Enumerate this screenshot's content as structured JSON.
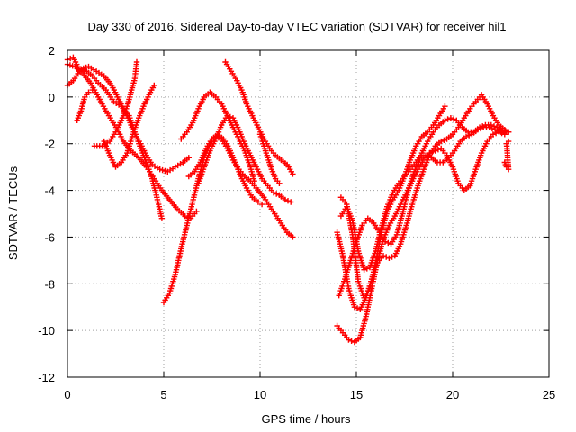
{
  "chart_data": {
    "type": "scatter",
    "title": "Day 330 of 2016, Sidereal Day-to-day VTEC variation (SDTVAR) for receiver hil1",
    "xlabel": "GPS time / hours",
    "ylabel": "SDTVAR / TECUs",
    "xlim": [
      0,
      25
    ],
    "ylim": [
      -12,
      2
    ],
    "xticks": [
      0,
      5,
      10,
      15,
      20,
      25
    ],
    "yticks": [
      -12,
      -10,
      -8,
      -6,
      -4,
      -2,
      0,
      2
    ],
    "xtick_labels": [
      "0",
      "5",
      "10",
      "15",
      "20",
      "25"
    ],
    "ytick_labels": [
      "-12",
      "-10",
      "-8",
      "-6",
      "-4",
      "-2",
      "0",
      "2"
    ],
    "grid": true,
    "marker": "+",
    "color": "#ff0000",
    "series": [
      {
        "points": [
          [
            0,
            1.6
          ],
          [
            0.3,
            1.7
          ],
          [
            0.6,
            1.2
          ],
          [
            1.0,
            1.1
          ],
          [
            1.3,
            0.9
          ],
          [
            1.6,
            0.6
          ],
          [
            2.0,
            0.3
          ],
          [
            2.4,
            -0.2
          ],
          [
            2.8,
            -0.4
          ],
          [
            3.2,
            -0.8
          ],
          [
            3.5,
            -1.5
          ],
          [
            3.8,
            -2.2
          ],
          [
            4.1,
            -2.8
          ],
          [
            4.4,
            -3.5
          ],
          [
            4.7,
            -4.5
          ],
          [
            4.9,
            -5.2
          ]
        ]
      },
      {
        "points": [
          [
            0,
            1.4
          ],
          [
            0.4,
            1.3
          ],
          [
            0.8,
            1.0
          ],
          [
            1.2,
            0.6
          ],
          [
            1.6,
            0.0
          ],
          [
            2.0,
            -0.6
          ],
          [
            2.3,
            -1.0
          ],
          [
            2.6,
            -1.4
          ],
          [
            2.9,
            -1.9
          ],
          [
            3.3,
            -2.3
          ],
          [
            3.7,
            -2.6
          ],
          [
            4.1,
            -3.0
          ],
          [
            4.5,
            -3.5
          ],
          [
            4.9,
            -4.0
          ],
          [
            5.3,
            -4.4
          ],
          [
            5.7,
            -4.8
          ],
          [
            6.1,
            -5.1
          ],
          [
            6.4,
            -5.2
          ],
          [
            6.7,
            -4.9
          ]
        ]
      },
      {
        "points": [
          [
            0,
            0.5
          ],
          [
            0.3,
            0.7
          ],
          [
            0.7,
            1.2
          ],
          [
            1.1,
            1.3
          ],
          [
            1.5,
            1.1
          ],
          [
            1.9,
            0.9
          ],
          [
            2.3,
            0.5
          ],
          [
            2.6,
            0.0
          ],
          [
            2.9,
            -0.5
          ],
          [
            3.2,
            -1.0
          ],
          [
            3.5,
            -1.6
          ],
          [
            3.8,
            -2.0
          ],
          [
            4.1,
            -2.5
          ],
          [
            4.4,
            -2.9
          ],
          [
            4.8,
            -3.1
          ],
          [
            5.2,
            -3.2
          ],
          [
            5.6,
            -3.0
          ],
          [
            6.0,
            -2.8
          ],
          [
            6.3,
            -2.6
          ]
        ]
      },
      {
        "points": [
          [
            0.5,
            -1.0
          ],
          [
            0.7,
            -0.6
          ],
          [
            0.9,
            0.0
          ],
          [
            1.1,
            0.2
          ],
          [
            1.3,
            0.3
          ]
        ]
      },
      {
        "points": [
          [
            1.4,
            -2.1
          ],
          [
            1.8,
            -2.1
          ],
          [
            2.2,
            -1.9
          ],
          [
            2.5,
            -1.5
          ],
          [
            2.8,
            -1.0
          ],
          [
            3.1,
            -0.4
          ],
          [
            3.3,
            0.2
          ],
          [
            3.5,
            0.8
          ],
          [
            3.6,
            1.5
          ]
        ]
      },
      {
        "points": [
          [
            1.9,
            -1.9
          ],
          [
            2.2,
            -2.5
          ],
          [
            2.5,
            -3.0
          ],
          [
            2.8,
            -2.8
          ],
          [
            3.1,
            -2.4
          ],
          [
            3.4,
            -1.6
          ],
          [
            3.7,
            -0.9
          ],
          [
            4.0,
            -0.3
          ],
          [
            4.3,
            0.2
          ],
          [
            4.5,
            0.5
          ]
        ]
      },
      {
        "points": [
          [
            5.0,
            -8.8
          ],
          [
            5.3,
            -8.4
          ],
          [
            5.6,
            -7.6
          ],
          [
            5.9,
            -6.5
          ],
          [
            6.2,
            -5.5
          ],
          [
            6.5,
            -4.5
          ],
          [
            6.8,
            -3.5
          ],
          [
            7.1,
            -2.6
          ],
          [
            7.4,
            -2.0
          ],
          [
            7.7,
            -1.7
          ],
          [
            8.0,
            -1.8
          ],
          [
            8.3,
            -2.2
          ],
          [
            8.6,
            -2.7
          ],
          [
            8.9,
            -3.1
          ],
          [
            9.2,
            -3.4
          ],
          [
            9.5,
            -3.6
          ],
          [
            9.8,
            -3.9
          ],
          [
            10.2,
            -4.3
          ],
          [
            10.6,
            -4.8
          ],
          [
            11.0,
            -5.3
          ],
          [
            11.4,
            -5.8
          ],
          [
            11.7,
            -6.0
          ]
        ]
      },
      {
        "points": [
          [
            5.9,
            -1.8
          ],
          [
            6.2,
            -1.5
          ],
          [
            6.5,
            -1.1
          ],
          [
            6.8,
            -0.5
          ],
          [
            7.1,
            0.0
          ],
          [
            7.4,
            0.2
          ],
          [
            7.7,
            0.0
          ],
          [
            8.0,
            -0.3
          ],
          [
            8.3,
            -0.8
          ],
          [
            8.6,
            -1.3
          ],
          [
            8.9,
            -1.8
          ],
          [
            9.2,
            -2.3
          ],
          [
            9.5,
            -3.0
          ],
          [
            9.7,
            -3.6
          ]
        ]
      },
      {
        "points": [
          [
            6.3,
            -3.4
          ],
          [
            6.6,
            -3.2
          ],
          [
            6.9,
            -2.8
          ],
          [
            7.2,
            -2.2
          ],
          [
            7.5,
            -1.8
          ],
          [
            7.8,
            -1.6
          ],
          [
            8.1,
            -1.8
          ],
          [
            8.4,
            -2.2
          ],
          [
            8.7,
            -2.8
          ],
          [
            9.0,
            -3.4
          ],
          [
            9.3,
            -3.9
          ],
          [
            9.6,
            -4.3
          ],
          [
            9.9,
            -4.5
          ],
          [
            10.1,
            -4.6
          ]
        ]
      },
      {
        "points": [
          [
            6.8,
            -3.7
          ],
          [
            7.1,
            -3.0
          ],
          [
            7.4,
            -2.3
          ],
          [
            7.7,
            -1.8
          ],
          [
            8.0,
            -1.2
          ],
          [
            8.3,
            -0.8
          ],
          [
            8.6,
            -0.9
          ],
          [
            8.9,
            -1.4
          ],
          [
            9.2,
            -2.0
          ],
          [
            9.5,
            -2.5
          ],
          [
            9.8,
            -3.0
          ],
          [
            10.1,
            -3.5
          ],
          [
            10.4,
            -3.8
          ],
          [
            10.7,
            -4.1
          ],
          [
            11.0,
            -4.2
          ],
          [
            11.3,
            -4.4
          ],
          [
            11.6,
            -4.5
          ]
        ]
      },
      {
        "points": [
          [
            8.2,
            1.5
          ],
          [
            8.5,
            1.1
          ],
          [
            8.8,
            0.7
          ],
          [
            9.1,
            0.2
          ],
          [
            9.3,
            -0.3
          ],
          [
            9.6,
            -0.8
          ],
          [
            9.9,
            -1.3
          ],
          [
            10.2,
            -1.8
          ],
          [
            10.5,
            -2.2
          ],
          [
            10.8,
            -2.5
          ],
          [
            11.1,
            -2.7
          ],
          [
            11.4,
            -2.9
          ],
          [
            11.7,
            -3.3
          ]
        ]
      },
      {
        "points": [
          [
            10.0,
            -1.6
          ],
          [
            10.2,
            -2.1
          ],
          [
            10.4,
            -2.6
          ],
          [
            10.6,
            -3.1
          ],
          [
            10.8,
            -3.5
          ],
          [
            11.0,
            -3.7
          ]
        ]
      },
      {
        "points": [
          [
            14.0,
            -5.8
          ],
          [
            14.3,
            -6.8
          ],
          [
            14.6,
            -8.2
          ],
          [
            14.9,
            -9.0
          ],
          [
            15.2,
            -9.1
          ],
          [
            15.5,
            -8.6
          ],
          [
            15.8,
            -7.8
          ],
          [
            16.1,
            -7.1
          ],
          [
            16.4,
            -6.8
          ],
          [
            16.7,
            -6.9
          ],
          [
            17.0,
            -6.8
          ],
          [
            17.3,
            -6.3
          ],
          [
            17.6,
            -5.5
          ],
          [
            17.9,
            -4.6
          ],
          [
            18.2,
            -3.8
          ],
          [
            18.5,
            -3.1
          ],
          [
            18.8,
            -2.5
          ],
          [
            19.1,
            -2.1
          ],
          [
            19.4,
            -1.9
          ],
          [
            19.7,
            -1.8
          ],
          [
            20.0,
            -1.6
          ],
          [
            20.3,
            -1.3
          ],
          [
            20.6,
            -0.9
          ],
          [
            20.9,
            -0.5
          ],
          [
            21.2,
            -0.2
          ],
          [
            21.5,
            0.1
          ],
          [
            21.8,
            -0.3
          ],
          [
            22.1,
            -0.8
          ],
          [
            22.4,
            -1.2
          ],
          [
            22.7,
            -1.4
          ],
          [
            22.9,
            -1.5
          ]
        ]
      },
      {
        "points": [
          [
            14.0,
            -9.8
          ],
          [
            14.3,
            -10.1
          ],
          [
            14.6,
            -10.4
          ],
          [
            14.9,
            -10.5
          ],
          [
            15.2,
            -10.3
          ],
          [
            15.5,
            -9.4
          ],
          [
            15.8,
            -8.2
          ],
          [
            16.1,
            -7.0
          ],
          [
            16.4,
            -6.1
          ],
          [
            16.7,
            -5.5
          ],
          [
            17.0,
            -5.1
          ],
          [
            17.3,
            -4.6
          ],
          [
            17.6,
            -4.1
          ],
          [
            17.9,
            -3.6
          ],
          [
            18.2,
            -3.1
          ],
          [
            18.5,
            -2.7
          ],
          [
            18.8,
            -2.4
          ],
          [
            19.1,
            -2.3
          ],
          [
            19.4,
            -2.2
          ],
          [
            19.7,
            -2.5
          ],
          [
            20.0,
            -3.0
          ],
          [
            20.3,
            -3.7
          ],
          [
            20.6,
            -4.0
          ],
          [
            20.9,
            -3.8
          ],
          [
            21.2,
            -3.1
          ],
          [
            21.5,
            -2.4
          ],
          [
            21.8,
            -1.9
          ],
          [
            22.1,
            -1.6
          ],
          [
            22.4,
            -1.5
          ],
          [
            22.7,
            -1.6
          ]
        ]
      },
      {
        "points": [
          [
            14.1,
            -8.5
          ],
          [
            14.4,
            -7.8
          ],
          [
            14.7,
            -7.0
          ],
          [
            15.0,
            -6.2
          ],
          [
            15.3,
            -5.5
          ],
          [
            15.6,
            -5.2
          ],
          [
            15.9,
            -5.4
          ],
          [
            16.2,
            -5.8
          ],
          [
            16.5,
            -6.2
          ],
          [
            16.8,
            -6.3
          ],
          [
            17.1,
            -5.9
          ],
          [
            17.4,
            -5.0
          ],
          [
            17.7,
            -4.0
          ],
          [
            18.0,
            -3.2
          ],
          [
            18.3,
            -2.7
          ],
          [
            18.6,
            -2.5
          ],
          [
            18.9,
            -2.6
          ],
          [
            19.2,
            -2.8
          ],
          [
            19.5,
            -2.8
          ],
          [
            19.8,
            -2.6
          ],
          [
            20.1,
            -2.3
          ],
          [
            20.4,
            -1.9
          ],
          [
            20.7,
            -1.7
          ],
          [
            21.0,
            -1.6
          ],
          [
            21.3,
            -1.4
          ],
          [
            21.6,
            -1.3
          ],
          [
            21.9,
            -1.3
          ],
          [
            22.2,
            -1.4
          ],
          [
            22.5,
            -1.5
          ],
          [
            22.8,
            -1.5
          ]
        ]
      },
      {
        "points": [
          [
            14.2,
            -5.1
          ],
          [
            14.5,
            -4.7
          ],
          [
            14.8,
            -5.3
          ],
          [
            15.1,
            -6.6
          ],
          [
            15.4,
            -7.4
          ],
          [
            15.7,
            -7.3
          ],
          [
            16.0,
            -6.6
          ],
          [
            16.3,
            -5.6
          ],
          [
            16.6,
            -4.7
          ],
          [
            16.9,
            -4.1
          ],
          [
            17.2,
            -3.7
          ],
          [
            17.5,
            -3.4
          ],
          [
            17.8,
            -3.1
          ],
          [
            18.1,
            -2.8
          ],
          [
            18.4,
            -2.4
          ],
          [
            18.7,
            -1.9
          ],
          [
            19.0,
            -1.5
          ],
          [
            19.3,
            -1.2
          ],
          [
            19.6,
            -1.0
          ],
          [
            19.9,
            -0.9
          ],
          [
            20.2,
            -1.0
          ],
          [
            20.5,
            -1.3
          ],
          [
            20.8,
            -1.5
          ],
          [
            21.1,
            -1.5
          ],
          [
            21.4,
            -1.3
          ],
          [
            21.7,
            -1.2
          ],
          [
            22.0,
            -1.2
          ],
          [
            22.3,
            -1.3
          ],
          [
            22.6,
            -1.4
          ],
          [
            22.9,
            -1.5
          ]
        ]
      },
      {
        "points": [
          [
            14.2,
            -4.3
          ],
          [
            14.5,
            -4.6
          ],
          [
            14.8,
            -5.9
          ],
          [
            15.1,
            -7.9
          ],
          [
            15.4,
            -8.6
          ],
          [
            15.7,
            -8.2
          ],
          [
            16.0,
            -7.1
          ],
          [
            16.3,
            -5.8
          ],
          [
            16.6,
            -4.9
          ],
          [
            16.9,
            -4.4
          ],
          [
            17.2,
            -4.0
          ],
          [
            17.5,
            -3.4
          ],
          [
            17.8,
            -2.7
          ],
          [
            18.1,
            -2.1
          ],
          [
            18.4,
            -1.7
          ],
          [
            18.7,
            -1.5
          ],
          [
            19.0,
            -1.2
          ],
          [
            19.3,
            -0.8
          ],
          [
            19.6,
            -0.4
          ]
        ]
      },
      {
        "points": [
          [
            22.7,
            -2.8
          ],
          [
            22.8,
            -3.0
          ],
          [
            22.9,
            -3.1
          ],
          [
            22.8,
            -2.0
          ],
          [
            22.9,
            -1.9
          ]
        ]
      }
    ]
  }
}
